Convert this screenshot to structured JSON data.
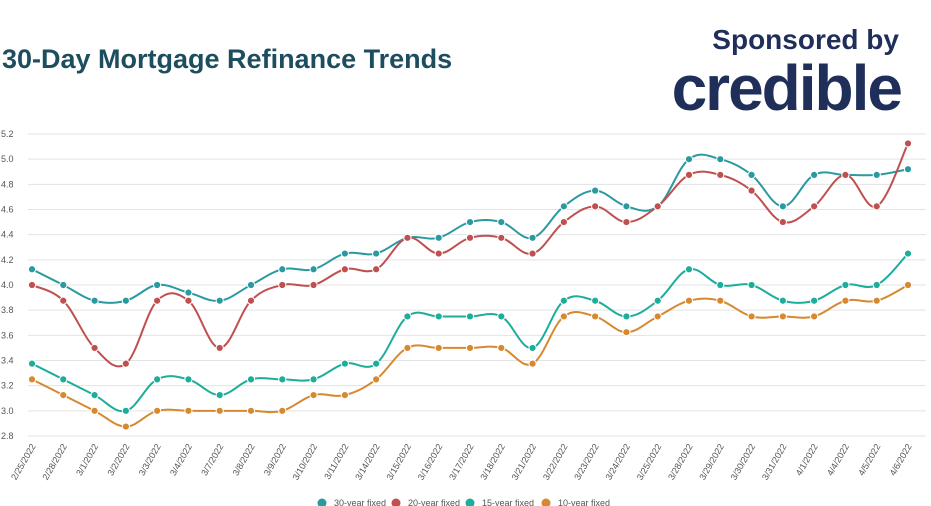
{
  "header": {
    "title": "30-Day Mortgage Refinance Trends",
    "sponsor_label": "Sponsored by",
    "brand": "credible"
  },
  "chart_data": {
    "type": "line",
    "title": "30-Day Mortgage Refinance Trends",
    "xlabel": "",
    "ylabel": "",
    "ylim": [
      2.8,
      5.2
    ],
    "yticks": [
      2.8,
      3.0,
      3.2,
      3.4,
      3.6,
      3.8,
      4.0,
      4.2,
      4.4,
      4.6,
      4.8,
      5.0,
      5.2
    ],
    "ytick_labels": [
      "2.8",
      "3.0",
      "3.2",
      "3.4",
      "3.6",
      "3.8",
      "4.0",
      "4.2",
      "4.4",
      "4.6",
      "4.8",
      "5.0",
      "5.2"
    ],
    "grid": true,
    "legend_position": "bottom",
    "categories": [
      "2/25/2022",
      "2/28/2022",
      "3/1/2022",
      "3/2/2022",
      "3/3/2022",
      "3/4/2022",
      "3/7/2022",
      "3/8/2022",
      "3/9/2022",
      "3/10/2022",
      "3/11/2022",
      "3/14/2022",
      "3/15/2022",
      "3/16/2022",
      "3/17/2022",
      "3/18/2022",
      "3/21/2022",
      "3/22/2022",
      "3/23/2022",
      "3/24/2022",
      "3/25/2022",
      "3/28/2022",
      "3/29/2022",
      "3/30/2022",
      "3/31/2022",
      "4/1/2022",
      "4/4/2022",
      "4/5/2022",
      "4/6/2022"
    ],
    "series": [
      {
        "name": "30-year fixed",
        "color": "#2a9aa1",
        "values": [
          4.125,
          4.0,
          3.875,
          3.875,
          4.0,
          3.94,
          3.875,
          4.0,
          4.125,
          4.125,
          4.25,
          4.25,
          4.375,
          4.375,
          4.5,
          4.5,
          4.375,
          4.625,
          4.75,
          4.625,
          4.625,
          5.0,
          5.0,
          4.875,
          4.625,
          4.875,
          4.875,
          4.875,
          4.92
        ]
      },
      {
        "name": "20-year fixed",
        "color": "#c0504f",
        "values": [
          4.0,
          3.875,
          3.5,
          3.375,
          3.875,
          3.875,
          3.5,
          3.875,
          4.0,
          4.0,
          4.125,
          4.125,
          4.375,
          4.25,
          4.375,
          4.375,
          4.25,
          4.5,
          4.625,
          4.5,
          4.625,
          4.875,
          4.875,
          4.75,
          4.5,
          4.625,
          4.875,
          4.625,
          5.125
        ]
      },
      {
        "name": "15-year fixed",
        "color": "#1cae9a",
        "values": [
          3.375,
          3.25,
          3.125,
          3.0,
          3.25,
          3.25,
          3.125,
          3.25,
          3.25,
          3.25,
          3.375,
          3.375,
          3.75,
          3.75,
          3.75,
          3.75,
          3.5,
          3.875,
          3.875,
          3.75,
          3.875,
          4.125,
          4.0,
          4.0,
          3.875,
          3.875,
          4.0,
          4.0,
          4.25
        ]
      },
      {
        "name": "10-year fixed",
        "color": "#d6892f",
        "values": [
          3.25,
          3.125,
          3.0,
          2.875,
          3.0,
          3.0,
          3.0,
          3.0,
          3.0,
          3.125,
          3.125,
          3.25,
          3.5,
          3.5,
          3.5,
          3.5,
          3.375,
          3.75,
          3.75,
          3.625,
          3.75,
          3.875,
          3.875,
          3.75,
          3.75,
          3.75,
          3.875,
          3.875,
          4.0
        ]
      }
    ]
  }
}
